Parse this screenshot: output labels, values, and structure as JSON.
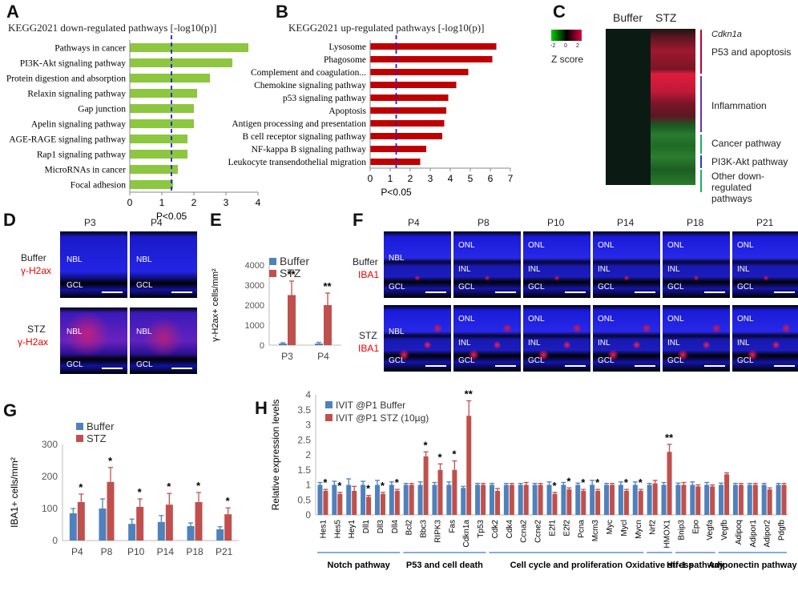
{
  "panel_labels": {
    "A": "A",
    "B": "B",
    "C": "C",
    "D": "D",
    "E": "E",
    "F": "F",
    "G": "G",
    "H": "H"
  },
  "colors": {
    "green": "#8dc63f",
    "red": "#c00000",
    "buffer_blue": "#4f81bd",
    "stz_red": "#c0504d",
    "dashed": "#1f1fd6",
    "microscopy_blue": "#1a1aff"
  },
  "panelA": {
    "title": "KEGG2021 down-regulated pathways [-log10(p)]",
    "threshold_label": "P<0.05",
    "chart_data": {
      "type": "bar",
      "orientation": "horizontal",
      "categories": [
        "Pathways in cancer",
        "PI3K-Akt signaling pathway",
        "Protein digestion and absorption",
        "Relaxin signaling pathway",
        "Gap junction",
        "Apelin signaling pathway",
        "AGE-RAGE signaling pathway",
        "Rap1 signaling pathway",
        "MicroRNAs in cancer",
        "Focal adhesion"
      ],
      "values": [
        3.7,
        3.2,
        2.5,
        2.1,
        2.0,
        2.0,
        1.8,
        1.8,
        1.5,
        1.35
      ],
      "xlim": [
        0,
        4
      ],
      "ticks": [
        "0",
        "1",
        "2",
        "3",
        "4"
      ],
      "threshold": 1.3
    }
  },
  "panelB": {
    "title": "KEGG2021 up-regulated pathways [-log10(p)]",
    "threshold_label": "P<0.05",
    "chart_data": {
      "type": "bar",
      "orientation": "horizontal",
      "categories": [
        "Lysosome",
        "Phagosome",
        "Complement and coagulation...",
        "Chemokine signaling pathway",
        "p53 signaling pathway",
        "Apoptosis",
        "Antigen processing and presentation",
        "B cell receptor signaling pathway",
        "NF-kappa B signaling pathway",
        "Leukocyte transendothelial migration"
      ],
      "values": [
        6.3,
        6.1,
        4.9,
        4.3,
        3.9,
        3.8,
        3.7,
        3.6,
        2.8,
        2.5
      ],
      "xlim": [
        0,
        7
      ],
      "ticks": [
        "0",
        "1",
        "2",
        "3",
        "4",
        "5",
        "6",
        "7"
      ],
      "threshold": 1.3
    }
  },
  "panelC": {
    "col_buffer": "Buffer",
    "col_stz": "STZ",
    "zscore_label": "Z score",
    "scale_ticks": [
      "-2",
      "0",
      "2"
    ],
    "gene": "Cdkn1a",
    "groups": [
      "P53 and apoptosis",
      "Inflammation",
      "Cancer pathway",
      "PI3K-Akt pathway",
      "Other down-regulated pathways"
    ]
  },
  "panelD": {
    "cols": [
      "P3",
      "P4"
    ],
    "row1": {
      "name": "Buffer",
      "stain": "γ-H2ax"
    },
    "row2": {
      "name": "STZ",
      "stain": "γ-H2ax"
    },
    "layer_nbl": "NBL",
    "layer_gcl": "GCL"
  },
  "panelE": {
    "chart_data": {
      "type": "bar",
      "ylabel": "γ-H2ax+ cells/mm²",
      "categories": [
        "P3",
        "P4"
      ],
      "series": [
        {
          "name": "Buffer",
          "values": [
            80,
            80
          ],
          "errors": [
            40,
            60
          ]
        },
        {
          "name": "STZ",
          "values": [
            2500,
            2000
          ],
          "errors": [
            700,
            600
          ]
        }
      ],
      "ylim": [
        0,
        4000
      ],
      "ticks": [
        "0",
        "1000",
        "2000",
        "3000",
        "4000"
      ],
      "annotations": [
        "**",
        "**"
      ]
    }
  },
  "panelF": {
    "cols": [
      "P4",
      "P8",
      "P10",
      "P14",
      "P18",
      "P21"
    ],
    "row1": {
      "name": "Buffer",
      "stain": "IBA1"
    },
    "row2": {
      "name": "STZ",
      "stain": "IBA1"
    },
    "layers": {
      "nbl": "NBL",
      "onl": "ONL",
      "inl": "INL",
      "gcl": "GCL"
    }
  },
  "panelG": {
    "chart_data": {
      "type": "bar",
      "ylabel": "IBA1+ cells/mm²",
      "categories": [
        "P4",
        "P8",
        "P10",
        "P14",
        "P18",
        "P21"
      ],
      "series": [
        {
          "name": "Buffer",
          "values": [
            85,
            100,
            52,
            58,
            45,
            35
          ],
          "errors": [
            15,
            30,
            15,
            20,
            10,
            8
          ]
        },
        {
          "name": "STZ",
          "values": [
            120,
            183,
            105,
            112,
            120,
            82
          ],
          "errors": [
            25,
            45,
            25,
            35,
            30,
            20
          ]
        }
      ],
      "ylim": [
        0,
        300
      ],
      "ticks": [
        "0",
        "100",
        "200",
        "300"
      ],
      "annotations": [
        "*",
        "*",
        "*",
        "*",
        "*",
        "*"
      ]
    }
  },
  "panelH": {
    "chart_data": {
      "type": "bar",
      "ylabel": "Relative expression levels",
      "categories": [
        "Hes1",
        "Hes5",
        "Hey1",
        "Dll1",
        "Dll3",
        "Dll4",
        "Bcl2",
        "Bbc3",
        "RIPK3",
        "Fas",
        "Cdkn1a",
        "Tp53",
        "Cdk2",
        "Cdk4",
        "Ccna2",
        "Ccne2",
        "E2f1",
        "E2f2",
        "Pcna",
        "Mcm3",
        "Myc",
        "Mycl",
        "Mycn",
        "Nrf2",
        "HMOX1",
        "Bnip3",
        "Epo",
        "Vegfa",
        "Vegfb",
        "Adipoq",
        "Adipor1",
        "Adipor2",
        "Pdgfb"
      ],
      "series": [
        {
          "name": "IVIT @P1 Buffer",
          "values": [
            1,
            1,
            1,
            1,
            1,
            1,
            1,
            1,
            1,
            1,
            0.9,
            1,
            1,
            1,
            1,
            1,
            1,
            1,
            1,
            1,
            1,
            1,
            1,
            1,
            1,
            1,
            1,
            1,
            1,
            1,
            1,
            1,
            1
          ],
          "errors": [
            0.08,
            0.12,
            0.2,
            0.12,
            0.15,
            0.1,
            0.05,
            0.1,
            0.08,
            0.1,
            0.05,
            0.05,
            0.05,
            0.05,
            0.05,
            0.05,
            0.1,
            0.08,
            0.06,
            0.15,
            0.05,
            0.1,
            0.1,
            0.05,
            0.08,
            0.06,
            0.1,
            0.08,
            0.06,
            0.05,
            0.05,
            0.05,
            0.05
          ]
        },
        {
          "name": "IVIT @P1 STZ (10µg)",
          "values": [
            0.8,
            0.7,
            0.8,
            0.6,
            0.7,
            0.8,
            1.0,
            1.95,
            1.5,
            1.5,
            3.3,
            1.0,
            0.8,
            1.0,
            1.0,
            1.0,
            0.7,
            0.85,
            0.8,
            0.8,
            1.0,
            0.8,
            0.8,
            1.05,
            2.1,
            1.0,
            0.95,
            0.95,
            1.35,
            1.0,
            1.0,
            0.85,
            1.0
          ],
          "errors": [
            0.05,
            0.05,
            0.15,
            0.05,
            0.05,
            0.05,
            0.05,
            0.15,
            0.2,
            0.3,
            0.5,
            0.05,
            0.08,
            0.05,
            0.08,
            0.05,
            0.05,
            0.05,
            0.05,
            0.05,
            0.05,
            0.05,
            0.05,
            0.1,
            0.25,
            0.08,
            0.05,
            0.05,
            0.05,
            0.05,
            0.05,
            0.05,
            0.05
          ]
        }
      ],
      "ylim": [
        0,
        4
      ],
      "ticks": [
        "0",
        "0.5",
        "1",
        "1.5",
        "2",
        "2.5",
        "3",
        "3.5",
        "4"
      ],
      "annotations": [
        "*",
        "*",
        "",
        "*",
        "*",
        "*",
        "",
        "*",
        "*",
        "*",
        "**",
        "",
        "",
        "",
        "",
        "",
        "*",
        "*",
        "*",
        "*",
        "",
        "*",
        "*",
        "",
        "**",
        "",
        "",
        "",
        "",
        "",
        "",
        "",
        ""
      ],
      "groups": [
        {
          "label": "Notch pathway",
          "from": 0,
          "to": 5
        },
        {
          "label": "P53 and cell death",
          "from": 6,
          "to": 11
        },
        {
          "label": "Cell cycle and proliferation",
          "from": 12,
          "to": 22
        },
        {
          "label": "Oxidative stress",
          "from": 23,
          "to": 24
        },
        {
          "label": "Hif-1 pathway",
          "from": 25,
          "to": 27
        },
        {
          "label": "Adiponectin pathway",
          "from": 28,
          "to": 32
        }
      ]
    }
  }
}
